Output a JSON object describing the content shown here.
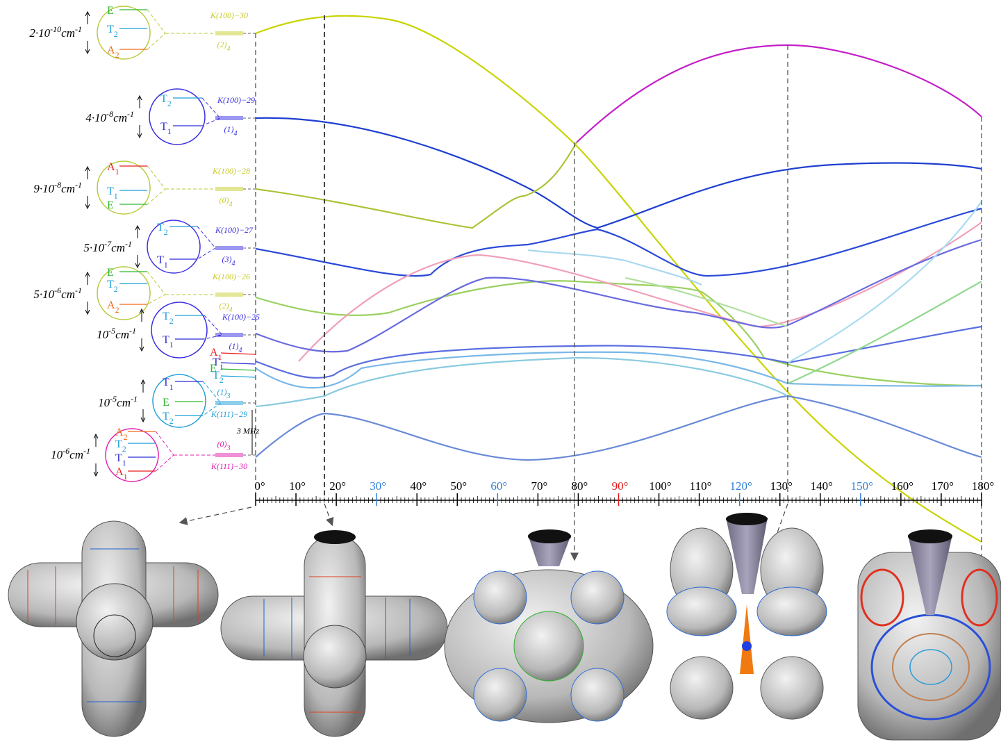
{
  "levels": [
    {
      "scale": [
        "2·10",
        "-10",
        "cm",
        "-1"
      ],
      "color": "#b9c93a",
      "irreps": [
        {
          "sym": "E",
          "color": "#2fb82f"
        },
        {
          "sym": "T",
          "sub": "2",
          "color": "#1e9fd8"
        },
        {
          "sym": "A",
          "sub": "2",
          "color": "#f06a1a"
        }
      ],
      "k_label": "K(100)−30",
      "band_label": [
        "(2)",
        "4"
      ],
      "label_color": "#c7cc2a"
    },
    {
      "scale": [
        "4·10",
        "-8",
        "cm",
        "-1"
      ],
      "color": "#3a2fe0",
      "irreps": [
        {
          "sym": "T",
          "sub": "2",
          "color": "#1e9fd8"
        },
        {
          "sym": "T",
          "sub": "1",
          "color": "#2a2ad8"
        }
      ],
      "k_label": "K(100)−29",
      "band_label": [
        "(1)",
        "4"
      ],
      "label_color": "#3a2fe0"
    },
    {
      "scale": [
        "9·10",
        "-8",
        "cm",
        "-1"
      ],
      "color": "#b9c93a",
      "irreps": [
        {
          "sym": "A",
          "sub": "1",
          "color": "#e81e1e"
        },
        {
          "sym": "T",
          "sub": "1",
          "color": "#1e9fd8"
        },
        {
          "sym": "E",
          "color": "#2fb82f"
        }
      ],
      "k_label": "K(100)−28",
      "band_label": [
        "(0)",
        "4"
      ],
      "label_color": "#c7cc2a"
    },
    {
      "scale": [
        "5·10",
        "-7",
        "cm",
        "-1"
      ],
      "color": "#3a2fe0",
      "irreps": [
        {
          "sym": "T",
          "sub": "2",
          "color": "#1e9fd8"
        },
        {
          "sym": "T",
          "sub": "1",
          "color": "#2a2ad8"
        }
      ],
      "k_label": "K(100)−27",
      "band_label": [
        "(3)",
        "4"
      ],
      "label_color": "#3a2fe0"
    },
    {
      "scale": [
        "5·10",
        "-6",
        "cm",
        "-1"
      ],
      "color": "#b9c93a",
      "irreps": [
        {
          "sym": "E",
          "color": "#2fb82f"
        },
        {
          "sym": "T",
          "sub": "2",
          "color": "#1e9fd8"
        },
        {
          "sym": "A",
          "sub": "2",
          "color": "#f06a1a"
        }
      ],
      "k_label": "K(100)−26",
      "band_label": [
        "(2)",
        "4"
      ],
      "label_color": "#c7cc2a"
    },
    {
      "scale": [
        "10",
        "-5",
        "cm",
        "-1"
      ],
      "color": "#3a2fe0",
      "irreps": [
        {
          "sym": "T",
          "sub": "2",
          "color": "#1e9fd8"
        },
        {
          "sym": "T",
          "sub": "1",
          "color": "#2a2ad8"
        }
      ],
      "k_label": "K(100)−25",
      "band_label": [
        "(1)",
        "4"
      ],
      "label_color": "#3a2fe0"
    },
    {
      "scale": [
        "10",
        "-5",
        "cm",
        "-1"
      ],
      "color": "#1e9fd8",
      "irreps": [
        {
          "sym": "T",
          "sub": "1",
          "color": "#2a2ad8"
        },
        {
          "sym": "E",
          "color": "#2fb82f"
        },
        {
          "sym": "T",
          "sub": "2",
          "color": "#1e9fd8"
        }
      ],
      "k_label": "K(111)−29",
      "band_label": [
        "(1)",
        "3"
      ],
      "label_color": "#1e9fd8"
    },
    {
      "scale": [
        "10",
        "-6",
        "cm",
        "-1"
      ],
      "color": "#e020b0",
      "irreps": [
        {
          "sym": "A",
          "sub": "2",
          "color": "#f06a1a"
        },
        {
          "sym": "T",
          "sub": "2",
          "color": "#1e9fd8"
        },
        {
          "sym": "T",
          "sub": "1",
          "color": "#2a2ad8"
        },
        {
          "sym": "A",
          "sub": "1",
          "color": "#e81e1e"
        }
      ],
      "k_label": "K(111)−30",
      "band_label": [
        "(0)",
        "3"
      ],
      "label_color": "#e020b0"
    }
  ],
  "free_irreps": [
    {
      "sym": "A",
      "sub": "1",
      "color": "#e81e1e"
    },
    {
      "sym": "T",
      "sub": "1",
      "color": "#2a2ad8"
    },
    {
      "sym": "E",
      "color": "#2fb82f"
    },
    {
      "sym": "T",
      "sub": "2",
      "color": "#1e9fd8"
    }
  ],
  "splitting_note": "3 MHz",
  "x_axis": {
    "ticks": [
      {
        "label": "0°",
        "color": "#000000"
      },
      {
        "label": "10°",
        "color": "#000000"
      },
      {
        "label": "20°",
        "color": "#000000"
      },
      {
        "label": "30°",
        "color": "#2f7fd8"
      },
      {
        "label": "40°",
        "color": "#000000"
      },
      {
        "label": "50°",
        "color": "#000000"
      },
      {
        "label": "60°",
        "color": "#2f7fd8"
      },
      {
        "label": "70°",
        "color": "#000000"
      },
      {
        "label": "80°",
        "color": "#000000"
      },
      {
        "label": "90°",
        "color": "#e01818"
      },
      {
        "label": "100°",
        "color": "#000000"
      },
      {
        "label": "110°",
        "color": "#000000"
      },
      {
        "label": "120°",
        "color": "#2f7fd8"
      },
      {
        "label": "130°",
        "color": "#000000"
      },
      {
        "label": "140°",
        "color": "#000000"
      },
      {
        "label": "150°",
        "color": "#2f7fd8"
      },
      {
        "label": "160°",
        "color": "#000000"
      },
      {
        "label": "170°",
        "color": "#000000"
      },
      {
        "label": "180°",
        "color": "#000000"
      }
    ]
  }
}
